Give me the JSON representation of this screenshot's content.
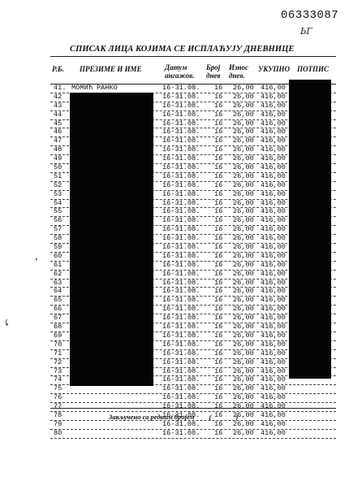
{
  "document_number": "06333087",
  "initials": "ЬГ",
  "title": "СПИСАК ЛИЦА КОЈИМА СЕ ИСПЛАЋУЈУ ДНЕВНИЦЕ",
  "columns": {
    "rb": "Р.Б.",
    "name": "ПРЕЗИМЕ И ИМЕ",
    "date": "Датум ангажов.",
    "days": "Број днев",
    "rate": "Износ днев.",
    "total": "УКУПНО",
    "signature": "ПОТПИС"
  },
  "rows": [
    {
      "rb": "41.",
      "name": "МОМИЋ РАНКО",
      "date": "16-31.08.",
      "days": "16",
      "rate": "26,00",
      "total": "416,00"
    },
    {
      "rb": "42",
      "name": "",
      "date": "16-31.08.",
      "days": "16",
      "rate": "26,00",
      "total": "416,00"
    },
    {
      "rb": "43",
      "name": "",
      "date": "16-31.08.",
      "days": "16",
      "rate": "26,00",
      "total": "416,00"
    },
    {
      "rb": "44",
      "name": "",
      "date": "16-31.08.",
      "days": "16",
      "rate": "26,00",
      "total": "416,00"
    },
    {
      "rb": "45",
      "name": "",
      "date": "16-31.08.",
      "days": "16",
      "rate": "26,00",
      "total": "416,00"
    },
    {
      "rb": "46",
      "name": "",
      "date": "16-31.08.",
      "days": "16",
      "rate": "26,00",
      "total": "416,00"
    },
    {
      "rb": "47",
      "name": "",
      "date": "16-31.08.",
      "days": "16",
      "rate": "26,00",
      "total": "416,00"
    },
    {
      "rb": "48",
      "name": "",
      "date": "16-31.08.",
      "days": "16",
      "rate": "26,00",
      "total": "416,00"
    },
    {
      "rb": "49",
      "name": "",
      "date": "16-31.08.",
      "days": "16",
      "rate": "26,00",
      "total": "416,00"
    },
    {
      "rb": "50",
      "name": "",
      "date": "16-31.08.",
      "days": "16",
      "rate": "26,00",
      "total": "416,00"
    },
    {
      "rb": "51",
      "name": "",
      "date": "16-31.08.",
      "days": "16",
      "rate": "26,00",
      "total": "416,00"
    },
    {
      "rb": "52",
      "name": "",
      "date": "16-31.08.",
      "days": "16",
      "rate": "26,00",
      "total": "416,00"
    },
    {
      "rb": "53",
      "name": "",
      "date": "16-31.08.",
      "days": "16",
      "rate": "26,00",
      "total": "416,00"
    },
    {
      "rb": "54",
      "name": "",
      "date": "16-31.08.",
      "days": "16",
      "rate": "26,00",
      "total": "416,00"
    },
    {
      "rb": "55",
      "name": "",
      "date": "16-31.08.",
      "days": "16",
      "rate": "26,00",
      "total": "416,00"
    },
    {
      "rb": "56",
      "name": "",
      "date": "16-31.08.",
      "days": "16",
      "rate": "26,00",
      "total": "416,00"
    },
    {
      "rb": "57",
      "name": "",
      "date": "16-31.08.",
      "days": "16",
      "rate": "26,00",
      "total": "416,00"
    },
    {
      "rb": "58",
      "name": "",
      "date": "16-31.08.",
      "days": "16",
      "rate": "26,00",
      "total": "416,00"
    },
    {
      "rb": "59",
      "name": "",
      "date": "16-31.08.",
      "days": "16",
      "rate": "26,00",
      "total": "416,00"
    },
    {
      "rb": "60",
      "name": "",
      "date": "16-31.08.",
      "days": "16",
      "rate": "26,00",
      "total": "416,00"
    },
    {
      "rb": "61",
      "name": "",
      "date": "16-31.08.",
      "days": "16",
      "rate": "26,00",
      "total": "416,00"
    },
    {
      "rb": "62",
      "name": "",
      "date": "16-31.08.",
      "days": "16",
      "rate": "26,00",
      "total": "416,00"
    },
    {
      "rb": "63",
      "name": "",
      "date": "16-31.08.",
      "days": "16",
      "rate": "26,00",
      "total": "416,00"
    },
    {
      "rb": "64",
      "name": "",
      "date": "16-31.08.",
      "days": "16",
      "rate": "26,00",
      "total": "416,00"
    },
    {
      "rb": "65",
      "name": "",
      "date": "16-31.08.",
      "days": "16",
      "rate": "26,00",
      "total": "416,00"
    },
    {
      "rb": "66",
      "name": "",
      "date": "16-31.08.",
      "days": "16",
      "rate": "26,00",
      "total": "416,00"
    },
    {
      "rb": "67",
      "name": "",
      "date": "16-31.08.",
      "days": "16",
      "rate": "26,00",
      "total": "416,00"
    },
    {
      "rb": "68",
      "name": "",
      "date": "16-31.08.",
      "days": "16",
      "rate": "26,00",
      "total": "416,00"
    },
    {
      "rb": "69",
      "name": "",
      "date": "16-31.08.",
      "days": "16",
      "rate": "26,00",
      "total": "416,00"
    },
    {
      "rb": "70",
      "name": "",
      "date": "16-31.08.",
      "days": "16",
      "rate": "26,00",
      "total": "416,00"
    },
    {
      "rb": "71",
      "name": "",
      "date": "16-31.08.",
      "days": "16",
      "rate": "26,00",
      "total": "416,00"
    },
    {
      "rb": "72",
      "name": "",
      "date": "16-31.08.",
      "days": "16",
      "rate": "26,00",
      "total": "416,00"
    },
    {
      "rb": "73",
      "name": "",
      "date": "16-31.08.",
      "days": "16",
      "rate": "26,00",
      "total": "416,00"
    },
    {
      "rb": "74",
      "name": "",
      "date": "16-31.08.",
      "days": "16",
      "rate": "26,00",
      "total": "416,00"
    },
    {
      "rb": "75",
      "name": "",
      "date": "16-31.08.",
      "days": "16",
      "rate": "26,00",
      "total": "416,00"
    },
    {
      "rb": "76",
      "name": "",
      "date": "16-31.08.",
      "days": "16",
      "rate": "26,00",
      "total": "416,00"
    },
    {
      "rb": "77",
      "name": "",
      "date": "16-31.08.",
      "days": "16",
      "rate": "26,00",
      "total": "416,00"
    },
    {
      "rb": "78",
      "name": "",
      "date": "16-31.08.",
      "days": "16",
      "rate": "26,00",
      "total": "416,00"
    },
    {
      "rb": "79",
      "name": "",
      "date": "16-31.08.",
      "days": "16",
      "rate": "26,00",
      "total": "416,00"
    },
    {
      "rb": "80",
      "name": "",
      "date": "16-31.08.",
      "days": "16",
      "rate": "26,00",
      "total": "416,00"
    }
  ],
  "closing": {
    "text": "Закључено са редним бројем",
    "parens": "( )"
  }
}
